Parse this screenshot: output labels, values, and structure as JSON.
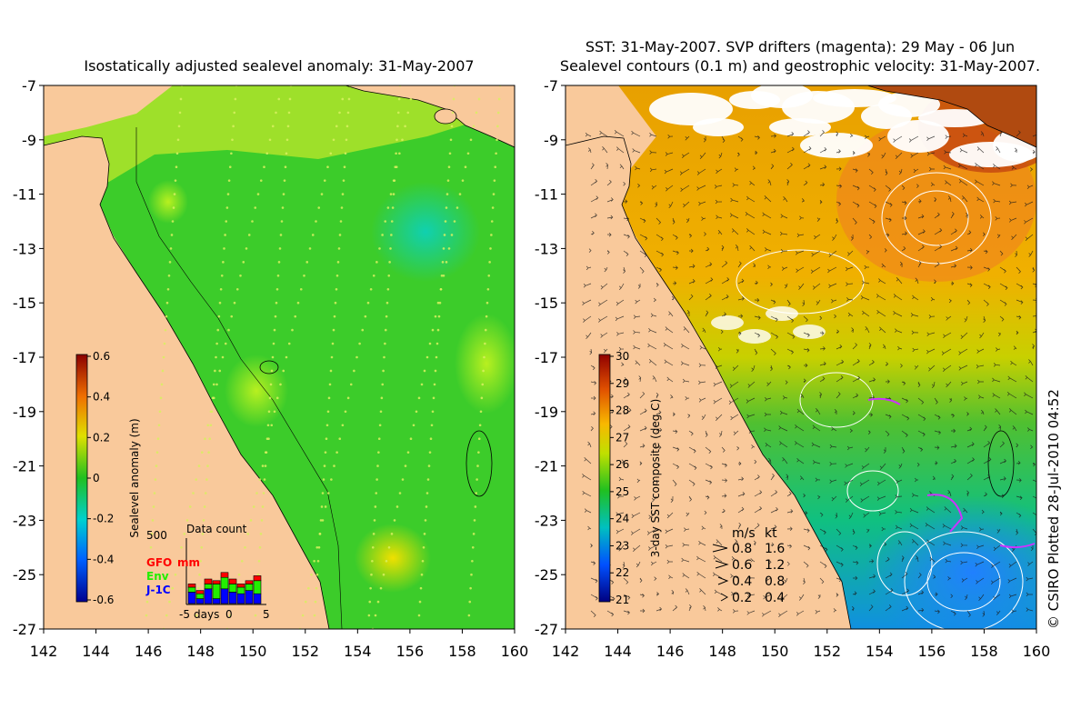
{
  "left_panel": {
    "title": "Isostatically adjusted sealevel anomaly: 31-May-2007",
    "colorbar": {
      "label": "Sealevel anomaly (m)",
      "ticks": [
        "0.6",
        "0.4",
        "0.2",
        "0",
        "-0.2",
        "-0.4",
        "-0.6"
      ],
      "range": [
        -0.6,
        0.6
      ]
    },
    "data_count": {
      "title": "Data count",
      "max_label": "500",
      "x_labels": [
        "-5",
        "days",
        "0",
        "5"
      ],
      "legend": [
        {
          "name": "GFO",
          "color": "#ff0000"
        },
        {
          "name": "Env",
          "color": "#22ee00"
        },
        {
          "name": "J-1C",
          "color": "#0000ff"
        }
      ],
      "unit_label": "mm",
      "bars": [
        {
          "j1c": 0.35,
          "env": 0.15,
          "gfo": 0.1
        },
        {
          "j1c": 0.15,
          "env": 0.15,
          "gfo": 0.1
        },
        {
          "j1c": 0.45,
          "env": 0.15,
          "gfo": 0.15
        },
        {
          "j1c": 0.15,
          "env": 0.45,
          "gfo": 0.1
        },
        {
          "j1c": 0.45,
          "env": 0.35,
          "gfo": 0.15
        },
        {
          "j1c": 0.35,
          "env": 0.25,
          "gfo": 0.15
        },
        {
          "j1c": 0.3,
          "env": 0.2,
          "gfo": 0.1
        },
        {
          "j1c": 0.4,
          "env": 0.2,
          "gfo": 0.1
        },
        {
          "j1c": 0.3,
          "env": 0.4,
          "gfo": 0.15
        }
      ]
    }
  },
  "right_panel": {
    "title_line1": "SST: 31-May-2007. SVP drifters (magenta): 29 May - 06 Jun",
    "title_line2": "Sealevel contours (0.1 m) and geostrophic velocity: 31-May-2007.",
    "colorbar": {
      "label": "3-day SST composite (deg C)",
      "ticks": [
        "30",
        "29",
        "28",
        "27",
        "26",
        "25",
        "24",
        "23",
        "22",
        "21"
      ],
      "range": [
        21,
        30
      ]
    },
    "velocity_legend": {
      "header_ms": "m/s",
      "header_kt": "kt",
      "rows": [
        {
          "ms": "0.8",
          "kt": "1.6"
        },
        {
          "ms": "0.6",
          "kt": "1.2"
        },
        {
          "ms": "0.4",
          "kt": "0.8"
        },
        {
          "ms": "0.2",
          "kt": "0.4"
        }
      ]
    }
  },
  "axes": {
    "lat_labels": [
      "-7",
      "-9",
      "-11",
      "-13",
      "-15",
      "-17",
      "-19",
      "-21",
      "-23",
      "-25",
      "-27"
    ],
    "lon_labels": [
      "142",
      "144",
      "146",
      "148",
      "150",
      "152",
      "154",
      "156",
      "158",
      "160"
    ]
  },
  "credit": "© CSIRO Plotted 28-Jul-2010 04:52",
  "colors": {
    "land": "#f9c99b",
    "sla_base": "#3ccc2a",
    "sst_base": "#f2a800",
    "cloud": "#ffffff"
  }
}
